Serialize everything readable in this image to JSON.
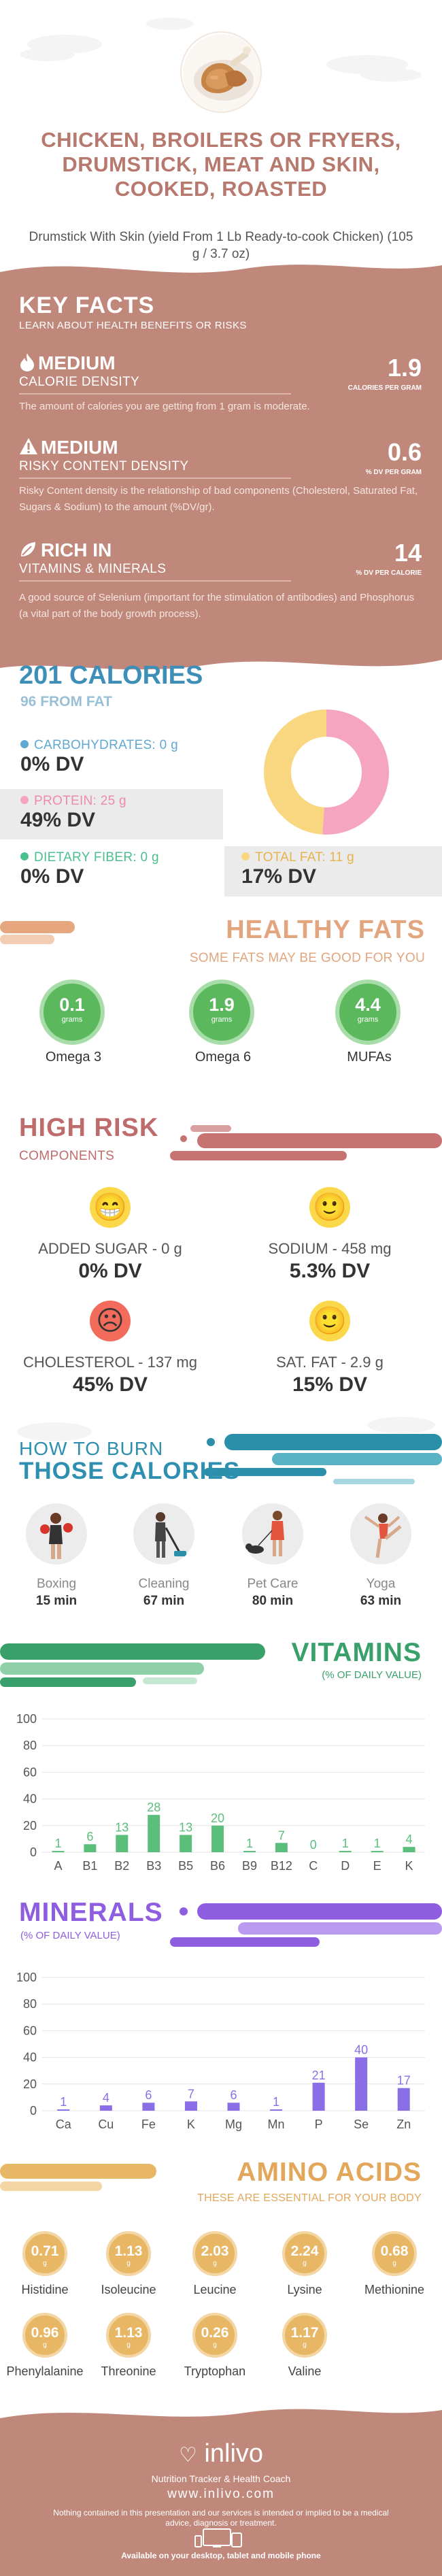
{
  "header": {
    "title": "CHICKEN, BROILERS OR FRYERS, DRUMSTICK, MEAT AND SKIN, COOKED, ROASTED",
    "subtitle": "Drumstick With Skin (yield From 1 Lb Ready-to-cook Chicken) (105 g / 3.7 oz)",
    "image_icon": "roasted-drumstick-photo"
  },
  "key_facts": {
    "title": "KEY FACTS",
    "subtitle": "LEARN ABOUT HEALTH BENEFITS OR RISKS",
    "items": [
      {
        "level": "MEDIUM",
        "kind": "CALORIE DENSITY",
        "value": "1.9",
        "unit": "CALORIES PER GRAM",
        "icon": "flame-icon",
        "description": "The amount of calories you are getting from 1 gram is moderate."
      },
      {
        "level": "MEDIUM",
        "kind": "RISKY CONTENT DENSITY",
        "value": "0.6",
        "unit": "% DV PER GRAM",
        "icon": "warning-icon",
        "description": "Risky Content density is the relationship of bad components (Cholesterol, Saturated Fat, Sugars & Sodium) to the amount (%DV/gr)."
      },
      {
        "level": "RICH IN",
        "kind": "VITAMINS & MINERALS",
        "value": "14",
        "unit": "% DV PER CALORIE",
        "icon": "leaf-icon",
        "description": "A good source of Selenium (important for the stimulation of antibodies) and Phosphorus (a vital part of the body growth process)."
      }
    ]
  },
  "calories": {
    "title": "201 CALORIES",
    "from_fat": "96 FROM FAT",
    "macros": [
      {
        "label": "CARBOHYDRATES: 0 g",
        "dv": "0% DV",
        "color": "#5fa8d3"
      },
      {
        "label": "PROTEIN: 25 g",
        "dv": "49% DV",
        "color": "#f6a5c0"
      },
      {
        "label": "DIETARY FIBER: 0 g",
        "dv": "0% DV",
        "color": "#4cbf8f"
      },
      {
        "label": "TOTAL FAT: 11 g",
        "dv": "17% DV",
        "color": "#f9d781"
      }
    ],
    "donut": [
      {
        "name": "PROTEIN",
        "value": 100,
        "color": "#f6a5c0"
      },
      {
        "name": "TOTAL FAT",
        "value": 96,
        "color": "#f9d781"
      }
    ]
  },
  "healthy_fats": {
    "title": "HEALTHY FATS",
    "subtitle": "SOME FATS MAY BE GOOD FOR YOU",
    "items": [
      {
        "value": "0.1",
        "unit": "grams",
        "name": "Omega 3"
      },
      {
        "value": "1.9",
        "unit": "grams",
        "name": "Omega 6"
      },
      {
        "value": "4.4",
        "unit": "grams",
        "name": "MUFAs"
      }
    ]
  },
  "high_risk": {
    "title": "HIGH RISK",
    "subtitle": "COMPONENTS",
    "items": [
      {
        "label": "ADDED SUGAR - 0 g",
        "dv": "0% DV",
        "face": "😁",
        "color": "#fbd84a"
      },
      {
        "label": "SODIUM - 458 mg",
        "dv": "5.3% DV",
        "face": "🙂",
        "color": "#fbd84a"
      },
      {
        "label": "CHOLESTEROL - 137 mg",
        "dv": "45% DV",
        "face": "☹",
        "color": "#f26b5b"
      },
      {
        "label": "SAT. FAT - 2.9 g",
        "dv": "15% DV",
        "face": "🙂",
        "color": "#fbd84a"
      }
    ]
  },
  "burn": {
    "title_line1": "HOW TO BURN",
    "title_line2": "THOSE CALORIES",
    "activities": [
      {
        "name": "Boxing",
        "minutes": "15 min",
        "icon": "boxing-icon"
      },
      {
        "name": "Cleaning",
        "minutes": "67 min",
        "icon": "cleaning-icon"
      },
      {
        "name": "Pet Care",
        "minutes": "80 min",
        "icon": "pet-care-icon"
      },
      {
        "name": "Yoga",
        "minutes": "63 min",
        "icon": "yoga-icon"
      }
    ]
  },
  "vitamins": {
    "title": "VITAMINS",
    "subtitle": "(% OF DAILY VALUE)"
  },
  "minerals": {
    "title": "MINERALS",
    "subtitle": "(% OF DAILY VALUE)"
  },
  "chart_data": [
    {
      "type": "bar",
      "title": "VITAMINS",
      "ylabel": "(% OF DAILY VALUE)",
      "categories": [
        "A",
        "B1",
        "B2",
        "B3",
        "B5",
        "B6",
        "B9",
        "B12",
        "C",
        "D",
        "E",
        "K"
      ],
      "values": [
        1,
        6,
        13,
        28,
        13,
        20,
        1,
        7,
        0,
        1,
        1,
        4
      ],
      "ylim": [
        0,
        100
      ],
      "yticks": [
        0,
        20,
        40,
        60,
        80,
        100
      ],
      "color": "#5bbf7b",
      "grid": true
    },
    {
      "type": "bar",
      "title": "MINERALS",
      "ylabel": "(% OF DAILY VALUE)",
      "categories": [
        "Ca",
        "Cu",
        "Fe",
        "K",
        "Mg",
        "Mn",
        "P",
        "Se",
        "Zn"
      ],
      "values": [
        1,
        4,
        6,
        7,
        6,
        1,
        21,
        40,
        17
      ],
      "ylim": [
        0,
        100
      ],
      "yticks": [
        0,
        20,
        40,
        60,
        80,
        100
      ],
      "color": "#8a6ee6",
      "grid": true
    }
  ],
  "amino_acids": {
    "title": "AMINO ACIDS",
    "subtitle": "THESE ARE ESSENTIAL FOR YOUR BODY",
    "items": [
      {
        "value": "0.71",
        "unit": "g",
        "name": "Histidine"
      },
      {
        "value": "1.13",
        "unit": "g",
        "name": "Isoleucine"
      },
      {
        "value": "2.03",
        "unit": "g",
        "name": "Leucine"
      },
      {
        "value": "2.24",
        "unit": "g",
        "name": "Lysine"
      },
      {
        "value": "0.68",
        "unit": "g",
        "name": "Methionine"
      },
      {
        "value": "0.96",
        "unit": "g",
        "name": "Phenylalanine"
      },
      {
        "value": "1.13",
        "unit": "g",
        "name": "Threonine"
      },
      {
        "value": "0.26",
        "unit": "g",
        "name": "Tryptophan"
      },
      {
        "value": "1.17",
        "unit": "g",
        "name": "Valine"
      }
    ]
  },
  "footer": {
    "logo": "inlivo",
    "tagline": "Nutrition Tracker & Health Coach",
    "url": "www.inlivo.com",
    "disclaimer": "Nothing contained in this presentation and our services is intended or implied to be a medical advice, diagnosis or treatment.",
    "available": "Available on your desktop, tablet and mobile phone"
  }
}
